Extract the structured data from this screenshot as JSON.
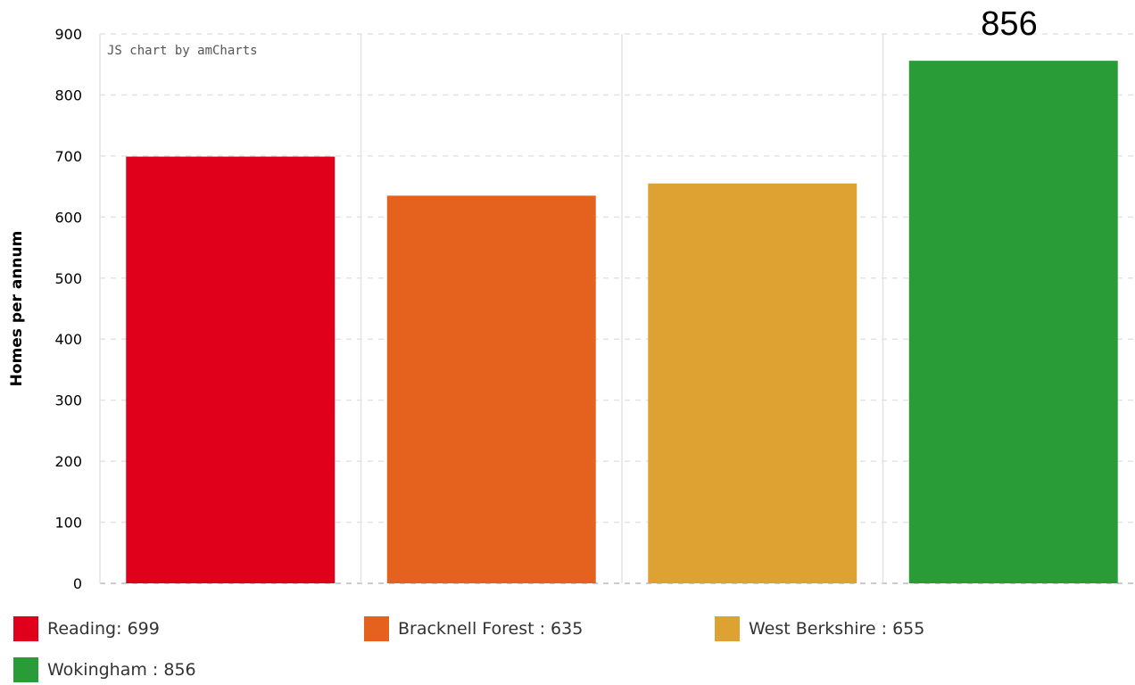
{
  "chart_data": {
    "type": "bar",
    "categories": [
      "Reading",
      "Bracknell Forest",
      "West Berkshire",
      "Wokingham"
    ],
    "values": [
      699,
      635,
      655,
      856
    ],
    "colors": [
      "#e0001b",
      "#e4621e",
      "#dea233",
      "#2a9c37"
    ],
    "ylabel": "Homes per annum",
    "ylim": [
      0,
      900
    ],
    "yticks": [
      "0",
      "100",
      "200",
      "300",
      "400",
      "500",
      "600",
      "700",
      "800",
      "900"
    ],
    "grid": true,
    "credit": "JS chart by amCharts",
    "annotation": "856",
    "legend": {
      "placement": "bottom",
      "entries": [
        "Reading: 699",
        "Bracknell Forest : 635",
        "West Berkshire : 655",
        "Wokingham : 856"
      ]
    }
  }
}
